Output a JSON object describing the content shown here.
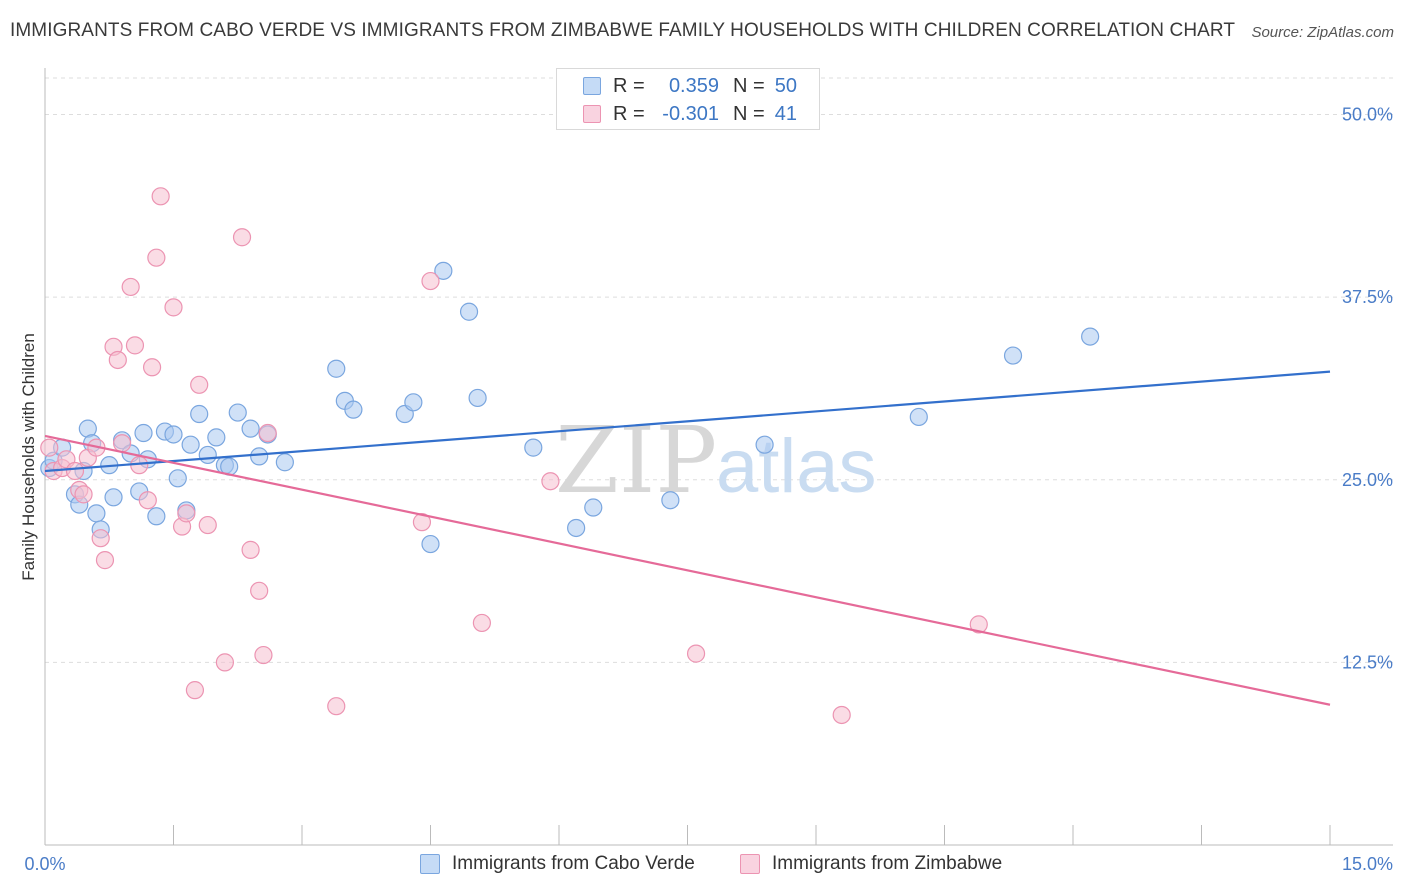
{
  "title": "IMMIGRANTS FROM CABO VERDE VS IMMIGRANTS FROM ZIMBABWE FAMILY HOUSEHOLDS WITH CHILDREN CORRELATION CHART",
  "source": "Source: ZipAtlas.com",
  "watermark": {
    "zip": "ZIP",
    "atlas": "atlas"
  },
  "legend_stats": [
    {
      "r_label": "R =",
      "r_value": "0.359",
      "n_label": "N =",
      "n_value": "50"
    },
    {
      "r_label": "R =",
      "r_value": "-0.301",
      "n_label": "N =",
      "n_value": "41"
    }
  ],
  "colors": {
    "blue_fill": "#a9c8f0",
    "blue_stroke": "#7aa6df",
    "blue_line": "#3370cc",
    "pink_fill": "#f6bfd0",
    "pink_stroke": "#ec94b2",
    "pink_line": "#e56a98",
    "tick_text": "#4a7cc7",
    "grid": "#dddddd"
  },
  "chart_data": {
    "type": "scatter",
    "title": "IMMIGRANTS FROM CABO VERDE VS IMMIGRANTS FROM ZIMBABWE FAMILY HOUSEHOLDS WITH CHILDREN CORRELATION CHART",
    "xlabel": "",
    "ylabel": "Family Households with Children",
    "xlim": [
      0,
      15
    ],
    "ylim": [
      0,
      52.5
    ],
    "x_tick_labels": [
      "0.0%",
      "15.0%"
    ],
    "y_ticks": [
      12.5,
      25.0,
      37.5,
      50.0
    ],
    "y_tick_labels": [
      "12.5%",
      "25.0%",
      "37.5%",
      "50.0%"
    ],
    "grid": true,
    "legend_position": "bottom",
    "series": [
      {
        "name": "Immigrants from Cabo Verde",
        "color": "#7aa6df",
        "points": [
          [
            0.05,
            25.8
          ],
          [
            0.1,
            26.3
          ],
          [
            0.2,
            27.2
          ],
          [
            0.35,
            24.0
          ],
          [
            0.4,
            23.3
          ],
          [
            0.45,
            25.6
          ],
          [
            0.5,
            28.5
          ],
          [
            0.55,
            27.5
          ],
          [
            0.6,
            22.7
          ],
          [
            0.65,
            21.6
          ],
          [
            0.75,
            26.0
          ],
          [
            0.8,
            23.8
          ],
          [
            0.9,
            27.7
          ],
          [
            1.0,
            26.8
          ],
          [
            1.1,
            24.2
          ],
          [
            1.15,
            28.2
          ],
          [
            1.2,
            26.4
          ],
          [
            1.3,
            22.5
          ],
          [
            1.4,
            28.3
          ],
          [
            1.5,
            28.1
          ],
          [
            1.55,
            25.1
          ],
          [
            1.65,
            22.9
          ],
          [
            1.7,
            27.4
          ],
          [
            1.8,
            29.5
          ],
          [
            1.9,
            26.7
          ],
          [
            2.0,
            27.9
          ],
          [
            2.1,
            26.0
          ],
          [
            2.15,
            25.9
          ],
          [
            2.25,
            29.6
          ],
          [
            2.4,
            28.5
          ],
          [
            2.5,
            26.6
          ],
          [
            2.6,
            28.1
          ],
          [
            2.8,
            26.2
          ],
          [
            3.4,
            32.6
          ],
          [
            3.5,
            30.4
          ],
          [
            3.6,
            29.8
          ],
          [
            4.2,
            29.5
          ],
          [
            4.3,
            30.3
          ],
          [
            4.5,
            20.6
          ],
          [
            4.65,
            39.3
          ],
          [
            4.95,
            36.5
          ],
          [
            5.05,
            30.6
          ],
          [
            5.7,
            27.2
          ],
          [
            6.2,
            21.7
          ],
          [
            6.4,
            23.1
          ],
          [
            7.3,
            23.6
          ],
          [
            8.4,
            27.4
          ],
          [
            10.2,
            29.3
          ],
          [
            11.3,
            33.5
          ],
          [
            12.2,
            34.8
          ]
        ]
      },
      {
        "name": "Immigrants from Zimbabwe",
        "color": "#ec94b2",
        "points": [
          [
            0.05,
            27.2
          ],
          [
            0.1,
            25.6
          ],
          [
            0.2,
            25.8
          ],
          [
            0.25,
            26.4
          ],
          [
            0.35,
            25.6
          ],
          [
            0.4,
            24.3
          ],
          [
            0.45,
            24.0
          ],
          [
            0.5,
            26.5
          ],
          [
            0.6,
            27.2
          ],
          [
            0.65,
            21.0
          ],
          [
            0.7,
            19.5
          ],
          [
            0.8,
            34.1
          ],
          [
            0.85,
            33.2
          ],
          [
            0.9,
            27.5
          ],
          [
            1.0,
            38.2
          ],
          [
            1.05,
            34.2
          ],
          [
            1.1,
            26.0
          ],
          [
            1.2,
            23.6
          ],
          [
            1.25,
            32.7
          ],
          [
            1.3,
            40.2
          ],
          [
            1.35,
            44.4
          ],
          [
            1.5,
            36.8
          ],
          [
            1.6,
            21.8
          ],
          [
            1.65,
            22.7
          ],
          [
            1.75,
            10.6
          ],
          [
            1.8,
            31.5
          ],
          [
            1.9,
            21.9
          ],
          [
            2.1,
            12.5
          ],
          [
            2.3,
            41.6
          ],
          [
            2.4,
            20.2
          ],
          [
            2.5,
            17.4
          ],
          [
            2.55,
            13.0
          ],
          [
            2.6,
            28.2
          ],
          [
            3.4,
            9.5
          ],
          [
            4.4,
            22.1
          ],
          [
            4.5,
            38.6
          ],
          [
            5.1,
            15.2
          ],
          [
            5.9,
            24.9
          ],
          [
            7.6,
            13.1
          ],
          [
            9.3,
            8.9
          ],
          [
            10.9,
            15.1
          ]
        ]
      }
    ],
    "trend_lines": [
      {
        "series": "Immigrants from Cabo Verde",
        "x": [
          0,
          15
        ],
        "y": [
          25.6,
          32.4
        ]
      },
      {
        "series": "Immigrants from Zimbabwe",
        "x": [
          0,
          15
        ],
        "y": [
          28.0,
          9.6
        ]
      }
    ]
  }
}
